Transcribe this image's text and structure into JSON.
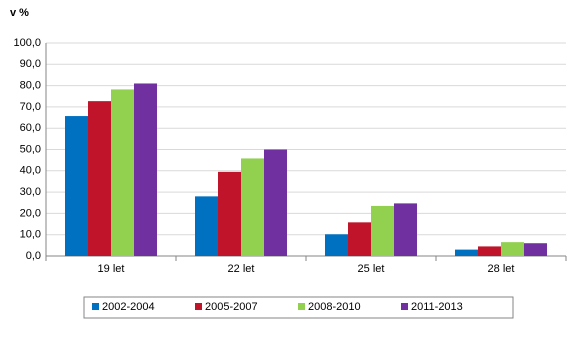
{
  "chart_data": {
    "type": "bar",
    "y_axis_title": "v %",
    "categories": [
      "19 let",
      "22 let",
      "25 let",
      "28 let"
    ],
    "series": [
      {
        "name": "2002-2004",
        "color": "#0070c0",
        "values": [
          65.7,
          28.0,
          10.2,
          3.0
        ]
      },
      {
        "name": "2005-2007",
        "color": "#c0142a",
        "values": [
          72.7,
          39.5,
          15.8,
          4.5
        ]
      },
      {
        "name": "2008-2010",
        "color": "#92d050",
        "values": [
          78.2,
          45.8,
          23.5,
          6.5
        ]
      },
      {
        "name": "2011-2013",
        "color": "#7030a0",
        "values": [
          81.0,
          50.0,
          24.7,
          6.0
        ]
      }
    ],
    "ylim": [
      0,
      100
    ],
    "yticks": [
      {
        "value": 0,
        "label": "0,0"
      },
      {
        "value": 10,
        "label": "10,0"
      },
      {
        "value": 20,
        "label": "20,0"
      },
      {
        "value": 30,
        "label": "30,0"
      },
      {
        "value": 40,
        "label": "40,0"
      },
      {
        "value": 50,
        "label": "50,0"
      },
      {
        "value": 60,
        "label": "60,0"
      },
      {
        "value": 70,
        "label": "70,0"
      },
      {
        "value": 80,
        "label": "80,0"
      },
      {
        "value": 90,
        "label": "90,0"
      },
      {
        "value": 100,
        "label": "100,0"
      }
    ],
    "grid": true
  }
}
